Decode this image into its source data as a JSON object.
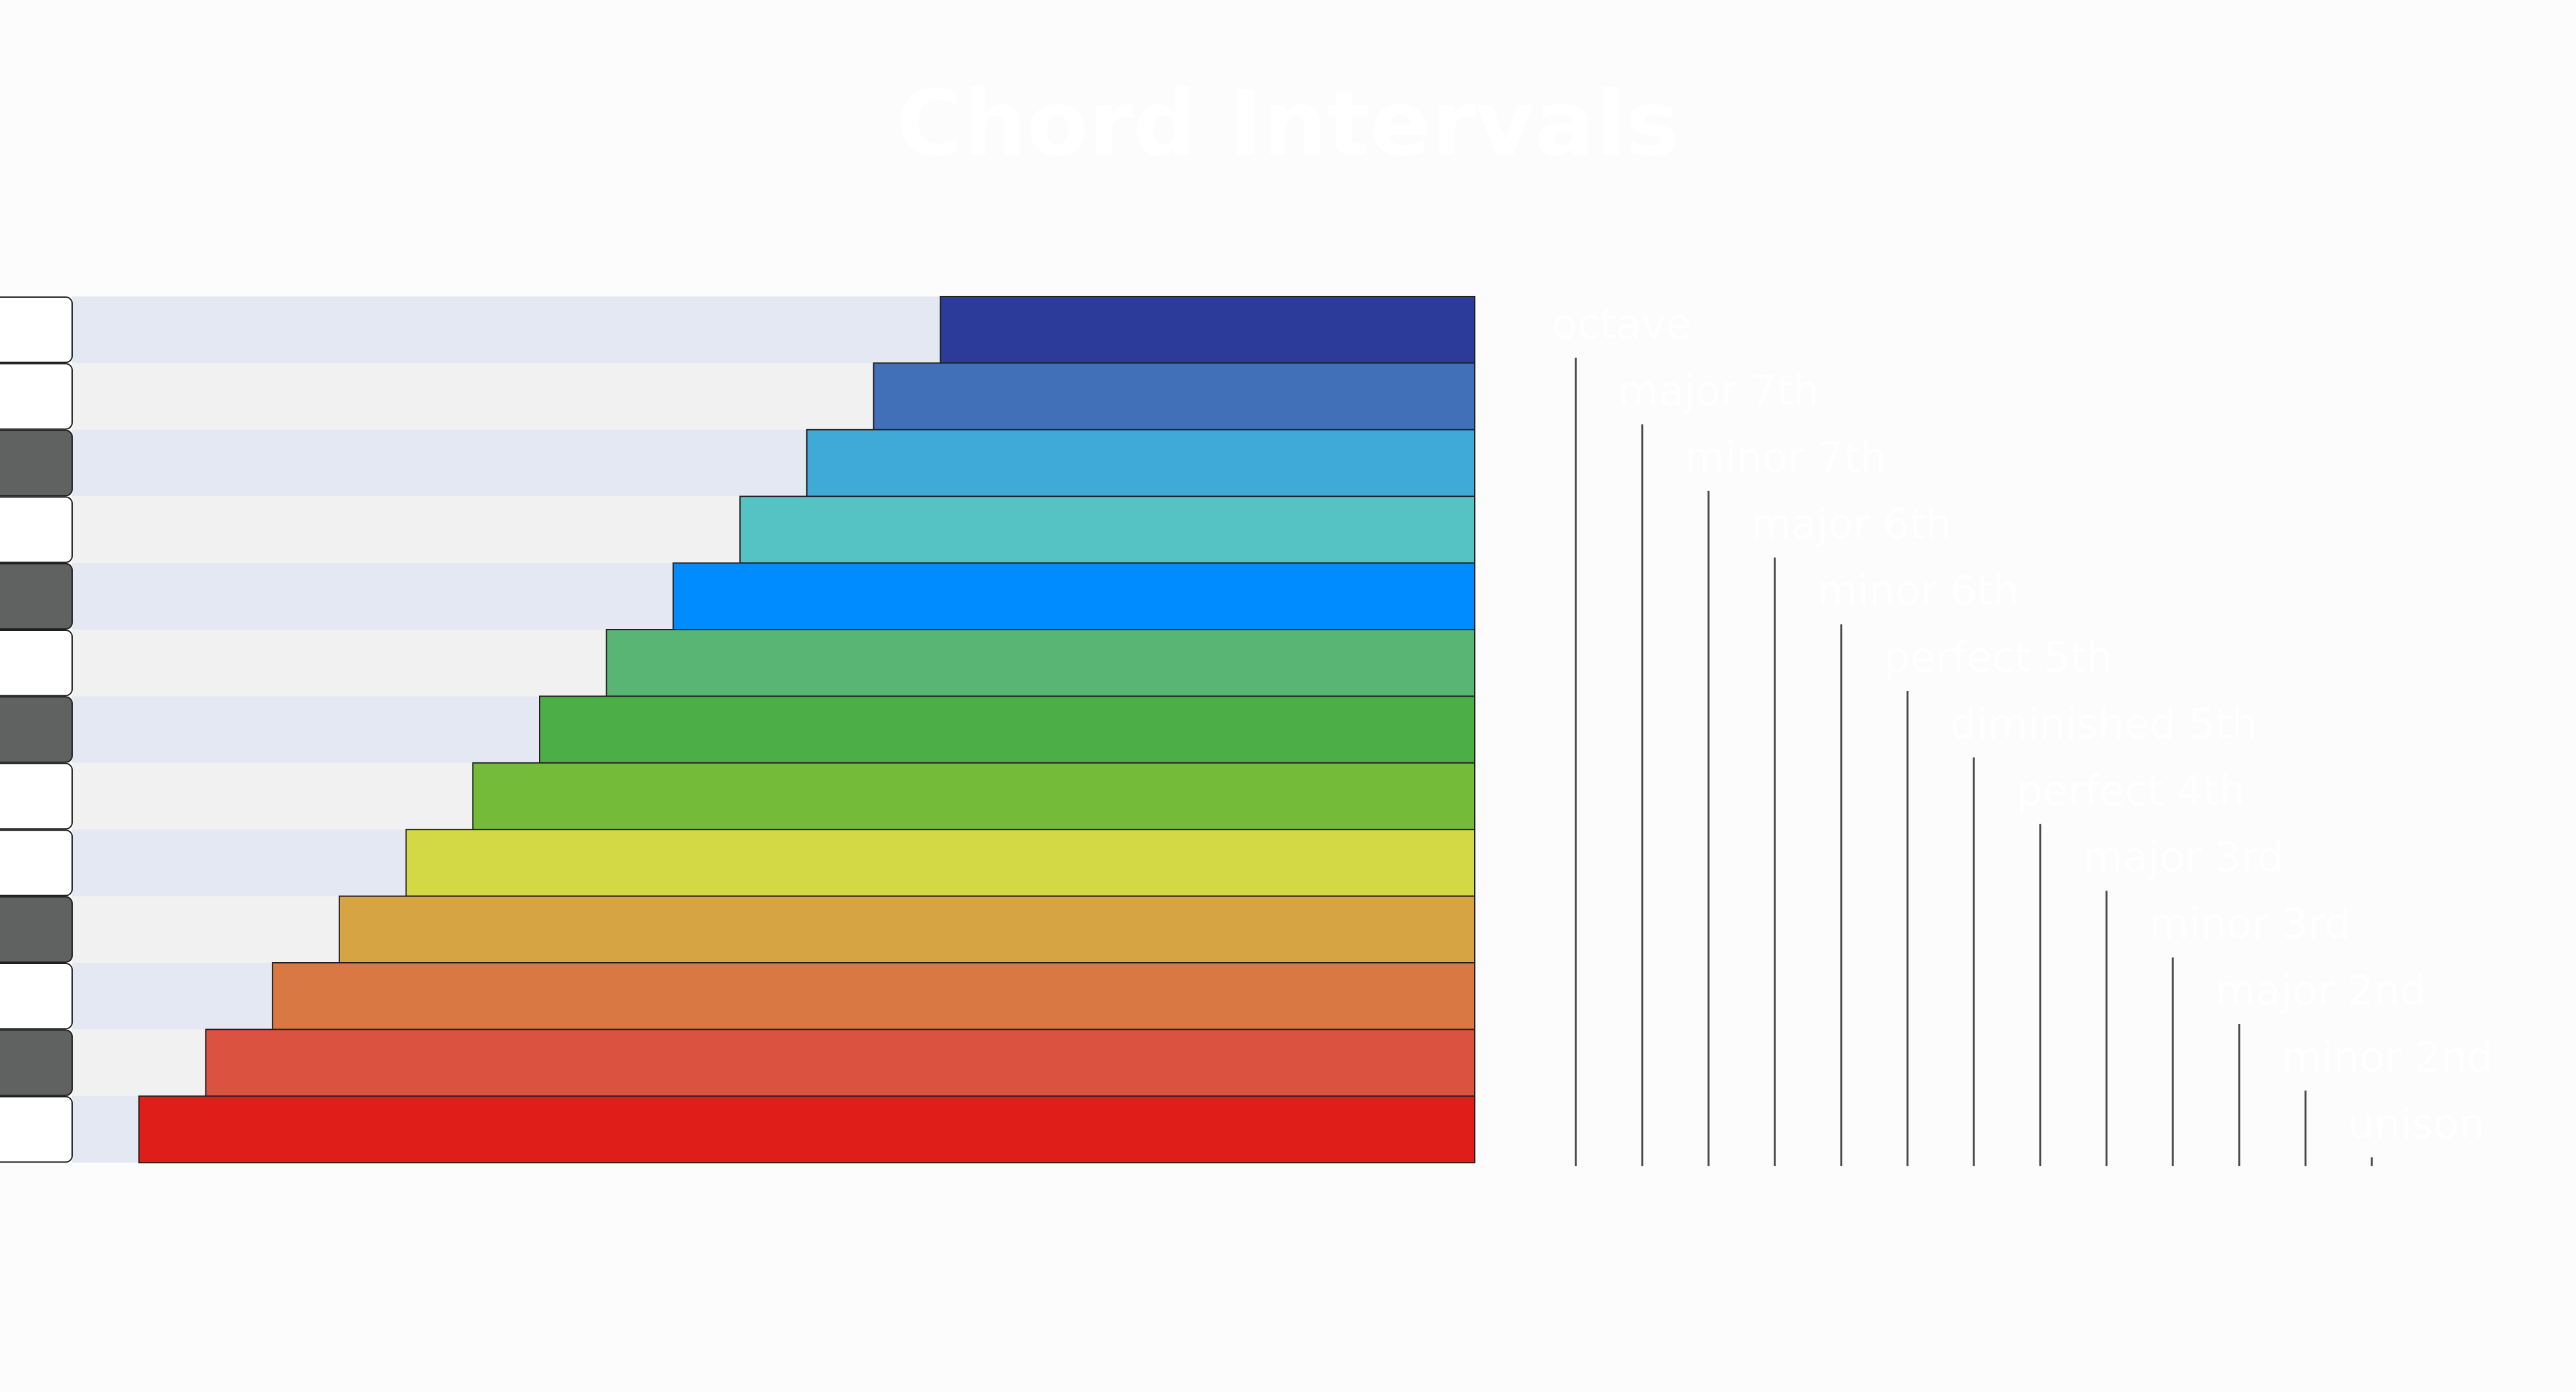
{
  "chart_data": {
    "type": "bar",
    "title": "Chord Intervals",
    "orientation": "horizontal",
    "direction": "right-aligned",
    "xlabel": "",
    "ylabel": "",
    "xlim": [
      0,
      21
    ],
    "grid": false,
    "legend": "none",
    "categories": [
      "octave",
      "major 7th",
      "minor 7th",
      "major 6th",
      "minor 6th",
      "perfect 5th",
      "diminished 5th",
      "perfect 4th",
      "major 3rd",
      "minor 3rd",
      "major 2nd",
      "minor 2nd",
      "unison"
    ],
    "values": [
      8,
      9,
      10,
      11,
      12,
      13,
      14,
      15,
      16,
      17,
      18,
      19,
      20
    ],
    "bar_colors": [
      "#2c3a9a",
      "#4170b8",
      "#3faad8",
      "#55c2c4",
      "#008cff",
      "#58b573",
      "#4cae47",
      "#74bb39",
      "#d3d944",
      "#d6a442",
      "#d97842",
      "#dc5240",
      "#df1e19"
    ],
    "piano_keys": [
      "white",
      "white",
      "black",
      "white",
      "black",
      "white",
      "black",
      "white",
      "white",
      "black",
      "white",
      "black",
      "white"
    ],
    "label_color": "#ffffff",
    "band_colors": [
      "#e4e8f2",
      "#f1f1f1"
    ]
  }
}
